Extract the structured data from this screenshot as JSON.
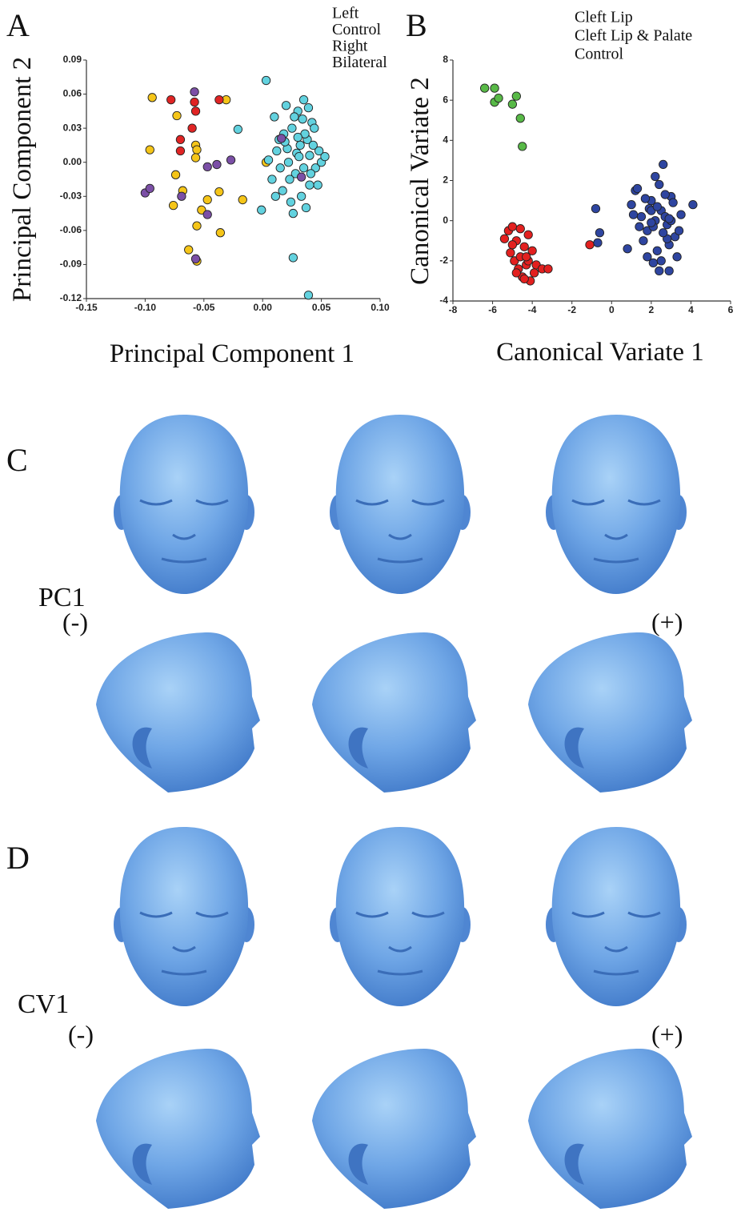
{
  "chart_data": [
    {
      "type": "scatter",
      "panel_label": "A",
      "x_label": "Principal Component 1",
      "y_label": "Principal Component 2",
      "xlim": [
        -0.15,
        0.1
      ],
      "ylim": [
        -0.12,
        0.09
      ],
      "xticks": [
        -0.15,
        {
          "value": -0.1,
          "label": "-0.10"
        },
        -0.05,
        {
          "value": 0,
          "label": "0.00"
        },
        0.05,
        {
          "value": 0.1,
          "label": "0.10"
        }
      ],
      "yticks": [
        0.09,
        0.06,
        0.03,
        {
          "value": 0,
          "label": "0.00"
        },
        -0.03,
        -0.06,
        -0.09,
        -0.12
      ],
      "legend": "top-right",
      "series": [
        {
          "name": "Left",
          "color": "#f5c518",
          "x": [
            -0.094,
            -0.096,
            -0.073,
            -0.074,
            -0.076,
            -0.068,
            -0.057,
            -0.056,
            -0.057,
            -0.047,
            -0.052,
            -0.056,
            -0.063,
            -0.056,
            -0.037,
            -0.036,
            -0.031,
            -0.017,
            0.003
          ],
          "values": [
            0.057,
            0.011,
            0.041,
            -0.011,
            -0.038,
            -0.025,
            0.015,
            0.011,
            0.004,
            -0.033,
            -0.042,
            -0.056,
            -0.077,
            -0.087,
            -0.026,
            -0.062,
            0.055,
            -0.033,
            0.0
          ]
        },
        {
          "name": "Control",
          "color": "#62d2df",
          "x": [
            0.003,
            0.01,
            0.012,
            0.015,
            0.018,
            0.02,
            0.022,
            0.025,
            0.028,
            0.03,
            0.032,
            0.035,
            0.038,
            0.04,
            0.042,
            0.045,
            0.048,
            0.05,
            0.053,
            0.008,
            0.014,
            0.017,
            0.021,
            0.024,
            0.027,
            0.029,
            0.033,
            0.036,
            0.039,
            0.041,
            0.044,
            0.047,
            0.019,
            0.023,
            0.031,
            0.037,
            0.005,
            0.011,
            0.026,
            0.034,
            0.043,
            -0.021,
            -0.001,
            0.026,
            0.039,
            0.04,
            0.035,
            0.03
          ],
          "values": [
            0.072,
            0.04,
            0.01,
            -0.005,
            0.025,
            0.05,
            0.0,
            0.03,
            -0.01,
            0.045,
            0.015,
            0.055,
            0.02,
            -0.02,
            0.035,
            -0.005,
            0.01,
            0.0,
            0.005,
            -0.015,
            0.02,
            -0.025,
            0.012,
            -0.035,
            0.04,
            0.008,
            -0.03,
            0.025,
            0.048,
            -0.01,
            0.03,
            -0.02,
            0.018,
            -0.015,
            0.005,
            -0.04,
            0.002,
            -0.03,
            -0.045,
            0.038,
            0.015,
            0.029,
            -0.042,
            -0.084,
            -0.117,
            0.006,
            -0.005,
            0.022
          ]
        },
        {
          "name": "Right",
          "color": "#7b4fa6",
          "x": [
            -0.058,
            -0.1,
            -0.096,
            -0.069,
            -0.047,
            -0.039,
            -0.027,
            -0.047,
            -0.057,
            0.033,
            0.016
          ],
          "values": [
            0.062,
            -0.027,
            -0.023,
            -0.03,
            -0.004,
            -0.002,
            0.002,
            -0.046,
            -0.085,
            -0.013,
            0.021
          ]
        },
        {
          "name": "Bilateral",
          "color": "#e02424",
          "x": [
            -0.078,
            -0.058,
            -0.06,
            -0.037,
            -0.07,
            -0.07,
            -0.057
          ],
          "values": [
            0.055,
            0.053,
            0.03,
            0.055,
            0.02,
            0.01,
            0.045
          ]
        }
      ]
    },
    {
      "type": "scatter",
      "panel_label": "B",
      "x_label": "Canonical Variate 1",
      "y_label": "Canonical Variate 2",
      "xlim": [
        -8,
        6
      ],
      "ylim": [
        -4,
        8
      ],
      "xticks": [
        -8,
        -6,
        -4,
        -2,
        0,
        2,
        4,
        6
      ],
      "yticks": [
        8,
        6,
        4,
        2,
        0,
        -2,
        -4
      ],
      "legend": "top-right",
      "series": [
        {
          "name": "Cleft Lip",
          "color": "#e3201f",
          "x": [
            -5.4,
            -5.2,
            -5.0,
            -4.8,
            -4.6,
            -4.4,
            -4.2,
            -4.0,
            -3.8,
            -3.5,
            -3.2,
            -5.1,
            -4.9,
            -4.7,
            -4.5,
            -4.3,
            -4.1,
            -3.9,
            -4.6,
            -4.4,
            -4.2,
            -4.8,
            -5.0,
            -4.3,
            -1.1
          ],
          "values": [
            -0.9,
            -0.5,
            -0.3,
            -1.0,
            -0.4,
            -1.3,
            -0.7,
            -1.5,
            -2.2,
            -2.4,
            -2.4,
            -1.6,
            -2.0,
            -2.4,
            -2.8,
            -2.2,
            -3.0,
            -2.6,
            -1.8,
            -2.9,
            -2.0,
            -2.6,
            -1.2,
            -1.8,
            -1.2
          ]
        },
        {
          "name": "Cleft Lip & Palate",
          "color": "#58b947",
          "x": [
            -6.4,
            -5.9,
            -5.9,
            -5.7,
            -5.0,
            -4.8,
            -4.6,
            -4.5
          ],
          "values": [
            6.6,
            6.6,
            5.9,
            6.1,
            5.8,
            6.2,
            5.1,
            3.7
          ]
        },
        {
          "name": "Control",
          "color": "#2e45a0",
          "x": [
            1.0,
            1.2,
            1.5,
            1.8,
            2.0,
            2.2,
            2.5,
            2.8,
            3.0,
            3.2,
            3.5,
            4.1,
            1.3,
            1.6,
            1.9,
            2.1,
            2.4,
            2.7,
            2.9,
            3.1,
            3.4,
            1.1,
            1.7,
            2.3,
            2.6,
            2.8,
            3.3,
            1.4,
            2.0,
            2.5,
            3.0,
            2.2,
            1.8,
            2.7,
            2.6,
            2.3,
            2.0,
            2.4,
            2.9,
            -0.8,
            -0.6,
            -0.7,
            0.8,
            2.1,
            2.9
          ],
          "values": [
            0.8,
            1.5,
            0.2,
            -0.5,
            1.0,
            0.0,
            0.5,
            -0.2,
            1.2,
            -0.8,
            0.3,
            0.8,
            1.6,
            -1.0,
            0.6,
            -0.3,
            1.8,
            0.2,
            -1.2,
            0.9,
            -0.5,
            0.3,
            1.1,
            -1.5,
            2.8,
            -0.9,
            -1.8,
            -0.3,
            0.5,
            -2.0,
            0.0,
            2.2,
            -1.8,
            1.3,
            -0.6,
            0.7,
            -0.1,
            -2.5,
            -2.5,
            0.6,
            -0.6,
            -1.1,
            -1.4,
            -2.1,
            0.1
          ]
        }
      ]
    }
  ],
  "panels": [
    {
      "label": "C",
      "component": "PC1",
      "minus": "(-)",
      "plus": "(+)"
    },
    {
      "label": "D",
      "component": "CV1",
      "minus": "(-)",
      "plus": "(+)"
    }
  ]
}
